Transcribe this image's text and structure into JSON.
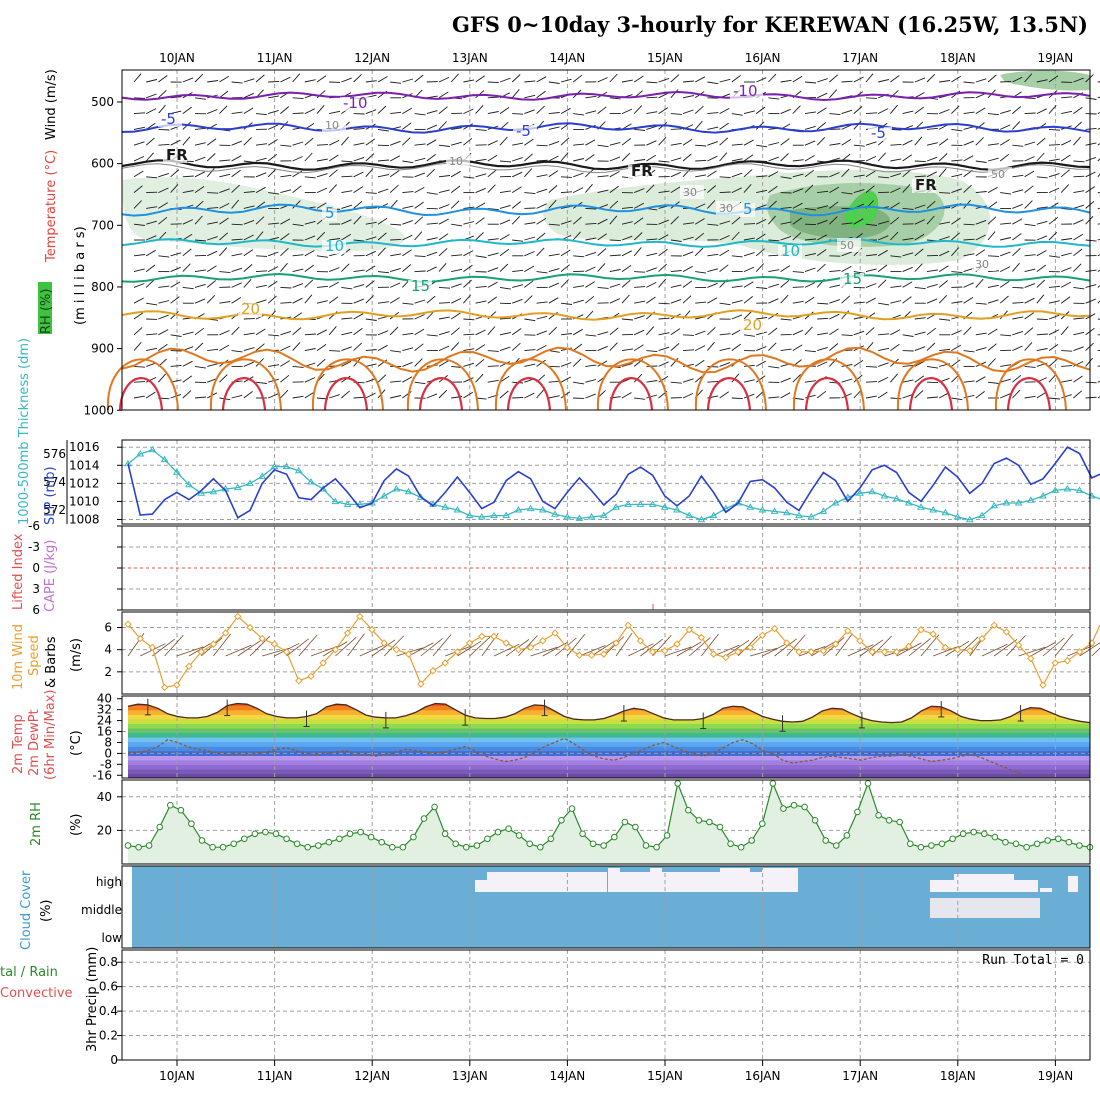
{
  "title": "GFS 0~10day 3-hourly for KEREWAN (16.25W, 13.5N)",
  "date_labels": [
    "10JAN",
    "11JAN",
    "12JAN",
    "13JAN",
    "14JAN",
    "15JAN",
    "16JAN",
    "17JAN",
    "18JAN",
    "19JAN"
  ],
  "run_total_label": "Run Total = 0",
  "colors": {
    "accent_blue": "#2a3fd0",
    "thickness_cyan": "#38b8c0",
    "wind_orange": "#e8a030",
    "rh_green": "#2a8a2a",
    "cloud_blue": "#6aaed6",
    "cloud_white": "#f4f2f8",
    "cape_purple": "#c070d0",
    "lifted_red": "#e05050"
  },
  "panels": {
    "upper": {
      "labels": {
        "wind": "Wind (m/s)",
        "temp": "Temperature (°C)",
        "rh": "RH (%)",
        "mb": "(m i l l i b a r s)"
      },
      "y_ticks": [
        "500",
        "600",
        "700",
        "800",
        "900",
        "1000"
      ],
      "contour_labels": [
        "-10",
        "-10",
        "-5",
        "-5",
        "-5",
        "FR",
        "FR",
        "FR",
        "5",
        "5",
        "10",
        "10",
        "15",
        "15",
        "20",
        "20",
        "10",
        "10",
        "30",
        "30",
        "50",
        "50",
        "30"
      ]
    },
    "slp": {
      "labels": {
        "thickness": "1000-500mb Thickness (dm)",
        "slp": "SLP (mb)"
      },
      "left_ticks": [
        "576",
        "574",
        "572"
      ],
      "right_ticks": [
        "1016",
        "1014",
        "1012",
        "1010",
        "1008"
      ]
    },
    "li": {
      "labels": {
        "li": "Lifted Index",
        "cape": "CAPE (J/kg)"
      },
      "ticks": [
        "-6",
        "-3",
        "0",
        "3",
        "6"
      ]
    },
    "wind": {
      "labels": {
        "line1": "10m Wind",
        "line2": "Speed",
        "line3": "& Barbs",
        "unit": "(m/s)"
      },
      "ticks": [
        "6",
        "4",
        "2"
      ]
    },
    "temp": {
      "labels": {
        "line1": "2m Temp",
        "line2": "2m DewPt",
        "line3": "(6hr Min/Max)",
        "unit": "(°C)"
      },
      "ticks": [
        "40",
        "32",
        "24",
        "16",
        "8",
        "0",
        "-8",
        "-16"
      ]
    },
    "rh2m": {
      "labels": {
        "name": "2m RH",
        "unit": "(%)"
      },
      "ticks": [
        "40",
        "20"
      ]
    },
    "cloud": {
      "labels": {
        "name": "Cloud Cover",
        "unit": "(%)"
      },
      "levels": [
        "high",
        "middle",
        "low"
      ]
    },
    "precip": {
      "labels": {
        "line1": "tal / Rain",
        "line2": "Convective",
        "axis": "3hr Precip (mm)"
      },
      "ticks": [
        "0.8",
        "0.6",
        "0.4",
        "0.2",
        "0"
      ]
    }
  },
  "chart_data": [
    {
      "type": "line",
      "panel": "slp",
      "x": "3-hourly steps from 9JAN 12Z",
      "series": [
        {
          "name": "SLP (mb)",
          "values": [
            1014.2,
            1008.5,
            1008.6,
            1010.2,
            1011.0,
            1010.2,
            1011.2,
            1012.5,
            1011.2,
            1008.2,
            1009.0,
            1012.0,
            1013.5,
            1013.0,
            1010.4,
            1010.2,
            1011.5,
            1012.5,
            1011.0,
            1009.3,
            1009.8,
            1012.3,
            1013.6,
            1012.8,
            1010.5,
            1009.5,
            1011.0,
            1012.7,
            1011.0,
            1009.2,
            1009.9,
            1012.3,
            1013.3,
            1012.5,
            1010.0,
            1009.2,
            1011.0,
            1012.6,
            1011.2,
            1009.6,
            1010.8,
            1013.0,
            1013.8,
            1012.9,
            1010.6,
            1009.5,
            1010.6,
            1012.8,
            1011.0,
            1008.8,
            1009.8,
            1012.2,
            1012.4,
            1011.5,
            1009.9,
            1009.0,
            1011.2,
            1013.2,
            1012.3,
            1010.0,
            1011.5,
            1013.5,
            1014.0,
            1013.2,
            1011.0,
            1010.0,
            1011.8,
            1013.8,
            1012.7,
            1010.9,
            1012.0,
            1014.2,
            1014.8,
            1014.0,
            1011.9,
            1012.5,
            1014.2,
            1016.0,
            1015.3,
            1012.6,
            1013.2,
            1015.0,
            1014.4,
            1014.4
          ]
        },
        {
          "name": "1000-500mb Thickness (dm)",
          "values": [
            575.3,
            576.0,
            576.3,
            575.6,
            574.7,
            573.8,
            573.2,
            573.3,
            573.5,
            573.6,
            573.9,
            574.4,
            575.1,
            575.1,
            574.8,
            574.0,
            573.5,
            572.6,
            572.4,
            572.4,
            572.5,
            573.0,
            573.5,
            573.3,
            572.9,
            572.4,
            572.2,
            572.0,
            571.6,
            571.5,
            571.6,
            571.6,
            572.0,
            572.1,
            572.0,
            571.7,
            571.5,
            571.4,
            571.5,
            571.6,
            572.2,
            572.4,
            572.4,
            572.4,
            572.2,
            572.0,
            571.6,
            571.3,
            571.6,
            572.1,
            572.5,
            572.2,
            572.0,
            571.9,
            571.8,
            571.6,
            571.5,
            571.9,
            572.5,
            572.9,
            573.2,
            573.3,
            573.0,
            572.8,
            572.5,
            572.2,
            572.0,
            571.8,
            571.5,
            571.3,
            571.6,
            572.3,
            572.5,
            572.5,
            572.7,
            573.0,
            573.4,
            573.5,
            573.4,
            573.0,
            572.7,
            572.6,
            572.5,
            573.0,
            573.9,
            574.6,
            575.0,
            575.3,
            575.4,
            575.1,
            574.5,
            574.0,
            573.9
          ]
        }
      ],
      "y_left_range": [
        571,
        577
      ],
      "y_right_range": [
        1007.5,
        1016.8
      ]
    },
    {
      "type": "line",
      "panel": "wind",
      "series": [
        {
          "name": "10m Wind Speed (m/s)",
          "values": [
            6.3,
            5.0,
            4.2,
            0.6,
            0.8,
            2.5,
            3.8,
            4.5,
            5.5,
            7.0,
            6.0,
            5.0,
            4.5,
            3.8,
            1.2,
            1.6,
            2.8,
            4.0,
            5.5,
            7.0,
            5.8,
            4.6,
            4.0,
            3.6,
            0.9,
            2.1,
            2.8,
            3.8,
            4.6,
            5.2,
            5.2,
            4.6,
            4.0,
            4.2,
            4.8,
            5.5,
            4.2,
            3.5,
            3.5,
            3.6,
            4.6,
            6.2,
            4.8,
            3.8,
            3.9,
            4.5,
            5.8,
            5.1,
            3.6,
            3.3,
            3.8,
            4.2,
            5.3,
            5.9,
            4.6,
            3.8,
            3.8,
            3.9,
            4.5,
            5.7,
            4.8,
            3.8,
            3.8,
            3.8,
            4.3,
            5.8,
            5.4,
            4.2,
            4.0,
            3.9,
            5.0,
            6.2,
            5.6,
            4.4,
            3.2,
            0.8,
            2.8,
            3.0,
            3.8,
            4.6,
            7.0,
            6.6,
            5.3,
            4.7,
            5.0,
            5.8,
            5.0,
            4.8
          ]
        }
      ],
      "y_range": [
        0,
        7.4
      ]
    },
    {
      "type": "area",
      "panel": "temp",
      "series": [
        {
          "name": "2m Temp (°C)",
          "values": [
            34.5,
            36,
            35.5,
            33,
            29,
            27,
            26,
            26,
            27,
            30,
            35,
            36.5,
            36,
            33,
            29,
            27,
            26,
            26,
            27,
            29,
            34,
            36,
            35.5,
            32,
            28,
            26.5,
            26,
            26,
            27.5,
            30,
            34,
            36.5,
            36,
            32,
            28,
            26,
            25.5,
            25.5,
            26.5,
            29,
            33,
            35.5,
            35,
            31,
            27,
            25,
            24.5,
            24.5,
            25.5,
            28,
            31,
            33,
            32,
            29,
            26,
            24.5,
            24.5,
            24.5,
            25.5,
            28.5,
            33,
            34.5,
            34,
            30.5,
            27,
            25,
            23.5,
            23,
            23.5,
            26.5,
            31,
            33,
            32.5,
            29,
            26,
            24,
            23,
            22.5,
            23,
            26,
            31,
            34.5,
            34,
            31,
            27,
            25,
            24,
            24,
            24.5,
            27,
            31,
            33.5,
            33,
            30,
            27,
            25,
            23.5,
            22.5
          ]
        },
        {
          "name": "2m DewPt (°C)",
          "values": [
            0,
            1,
            2,
            5,
            10,
            8,
            5,
            3,
            2,
            0,
            -1,
            0,
            -1,
            0,
            1,
            3,
            4,
            2,
            0,
            -1,
            0,
            1,
            2,
            -1,
            -1,
            -2,
            -1,
            1,
            3,
            2,
            1,
            0,
            1,
            3,
            5,
            2,
            -2,
            -4,
            -6,
            -5,
            -3,
            1,
            5,
            8,
            11,
            7,
            2,
            -2,
            -4,
            -5,
            -3,
            0,
            3,
            6,
            8,
            5,
            2,
            0,
            -2,
            0,
            4,
            8,
            10,
            7,
            2,
            0,
            -5,
            -7,
            -6,
            -5,
            -3,
            -2,
            -3,
            -4,
            -5,
            -3,
            -2,
            -2,
            -1,
            -2,
            -4,
            -6,
            -5,
            -4,
            -2,
            -1,
            -3,
            -6,
            -9,
            -12,
            -15
          ]
        }
      ],
      "y_range": [
        -18,
        42
      ]
    },
    {
      "type": "area",
      "panel": "rh2m",
      "series": [
        {
          "name": "2m RH (%)",
          "values": [
            11,
            10,
            11,
            22,
            35,
            32,
            24,
            14,
            10,
            10,
            12,
            15,
            18,
            19,
            18,
            15,
            12,
            10,
            11,
            13,
            15,
            18,
            19,
            16,
            13,
            10,
            10,
            16,
            27,
            34,
            18,
            12,
            10,
            11,
            15,
            19,
            21,
            17,
            12,
            10,
            15,
            26,
            33,
            18,
            12,
            11,
            16,
            25,
            22,
            11,
            10,
            17,
            48,
            32,
            26,
            25,
            22,
            12,
            10,
            14,
            24,
            48,
            33,
            35,
            34,
            26,
            14,
            11,
            17,
            31,
            48,
            29,
            26,
            25,
            12,
            10,
            11,
            12,
            15,
            18,
            19,
            18,
            16,
            13,
            12,
            10,
            12,
            14,
            15,
            13,
            11,
            10
          ]
        }
      ],
      "y_range": [
        0,
        50
      ]
    },
    {
      "type": "bar",
      "panel": "precip",
      "series": [
        {
          "name": "3hr Precip (mm)",
          "values": []
        }
      ],
      "y_range": [
        0,
        0.9
      ]
    }
  ]
}
